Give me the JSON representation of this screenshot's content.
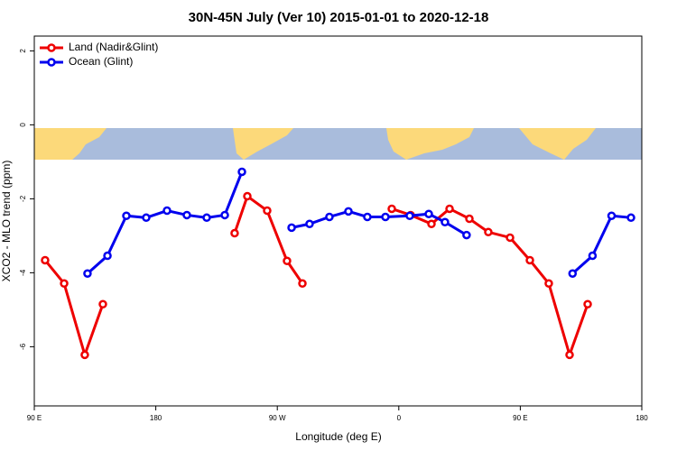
{
  "chart_data": {
    "type": "line",
    "title": "30N-45N July (Ver 10)   2015-01-01 to 2020-12-18",
    "x_label": "Longitude (deg E)",
    "y_label": "XCO2 - MLO trend (ppm)",
    "xlim": [
      90,
      540
    ],
    "ylim": [
      -7.6,
      2.4
    ],
    "xticks": [
      {
        "value": 90,
        "label": "90 E"
      },
      180,
      {
        "value": 270,
        "label": "90 W"
      },
      {
        "value": 360,
        "label": "0"
      },
      {
        "value": 450,
        "label": "90 E"
      },
      {
        "value": 540,
        "label": "180"
      }
    ],
    "yticks": [
      2,
      0,
      -2,
      -4,
      -6
    ],
    "legend": "top-left",
    "series": [
      {
        "name": "Land (Nadir&Glint)",
        "color": "#ee0000",
        "x": [
          98.0,
          112.1,
          127.4,
          140.8,
          null,
          238.4,
          247.8,
          262.5,
          277.2,
          288.6,
          null,
          354.8,
          368.8,
          384.2,
          397.6,
          412.3,
          426.3,
          442.4,
          457.1,
          471.1,
          486.5,
          499.9
        ],
        "values": [
          -3.66,
          -4.29,
          -6.22,
          -4.85,
          null,
          -2.93,
          -1.93,
          -2.32,
          -3.68,
          -4.29,
          null,
          -2.27,
          -2.44,
          -2.68,
          -2.27,
          -2.54,
          -2.9,
          -3.05,
          -3.66,
          -4.29,
          -6.22,
          -4.85
        ]
      },
      {
        "name": "Ocean (Glint)",
        "color": "#0000ee",
        "x": [
          129.4,
          144.2,
          158.2,
          172.9,
          188.3,
          203.0,
          217.7,
          231.1,
          243.8,
          null,
          280.6,
          293.9,
          308.6,
          322.7,
          336.7,
          350.1,
          368.1,
          382.2,
          394.2,
          410.2,
          null,
          488.7,
          503.5,
          517.6,
          532.0
        ],
        "values": [
          -4.02,
          -3.54,
          -2.46,
          -2.51,
          -2.32,
          -2.44,
          -2.51,
          -2.44,
          -1.27,
          null,
          -2.78,
          -2.68,
          -2.49,
          -2.34,
          -2.49,
          -2.49,
          -2.46,
          -2.41,
          -2.63,
          -2.98,
          null,
          -4.02,
          -3.54,
          -2.46,
          -2.51
        ]
      }
    ]
  }
}
